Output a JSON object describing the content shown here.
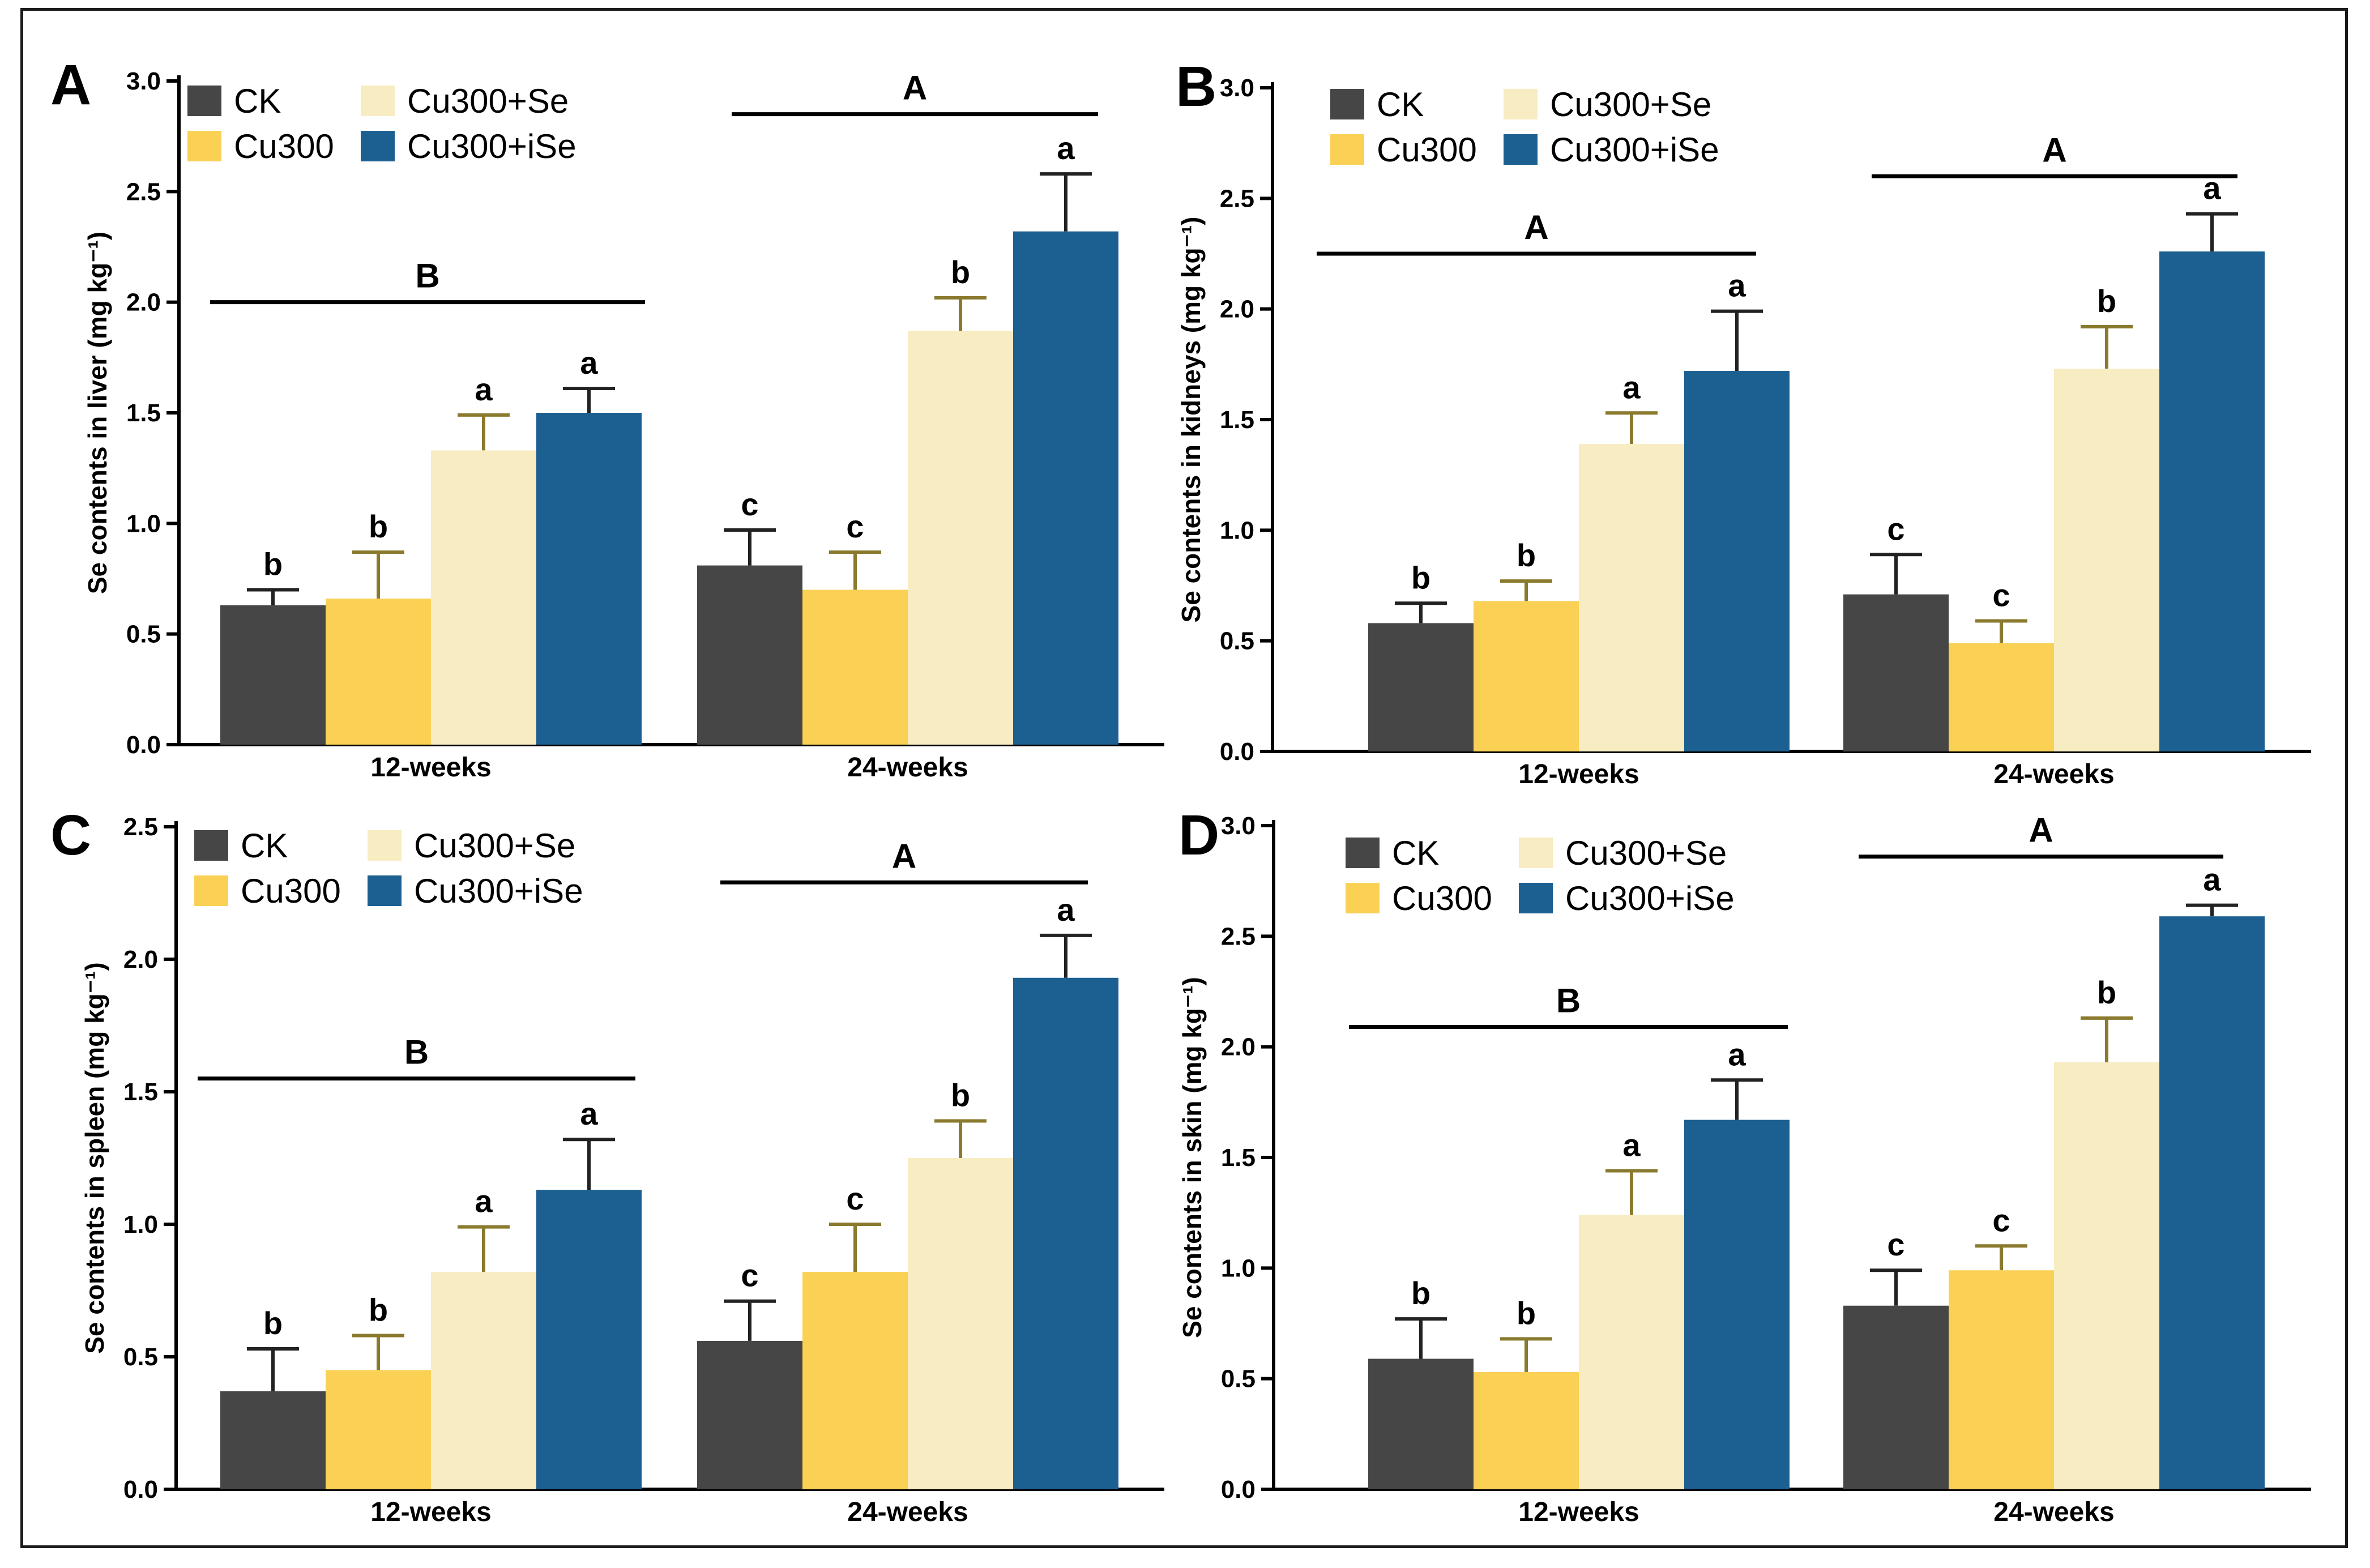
{
  "chart_data": [
    {
      "type": "bar",
      "panel_label": "A",
      "ylabel": "Se contents in liver (mg kg⁻¹)",
      "ylim": [
        0,
        3.0
      ],
      "yticks": [
        "0.0",
        "0.5",
        "1.0",
        "1.5",
        "2.0",
        "2.5",
        "3.0"
      ],
      "categories": [
        "12-weeks",
        "24-weeks"
      ],
      "legend": {
        "position": "top-left"
      },
      "series": [
        {
          "name": "CK",
          "values": [
            0.63,
            0.81
          ],
          "errors": [
            0.07,
            0.16
          ],
          "letters": [
            "b",
            "c"
          ]
        },
        {
          "name": "Cu300",
          "values": [
            0.66,
            0.7
          ],
          "errors": [
            0.21,
            0.17
          ],
          "letters": [
            "b",
            "c"
          ]
        },
        {
          "name": "Cu300+Se",
          "values": [
            1.33,
            1.87
          ],
          "errors": [
            0.16,
            0.15
          ],
          "letters": [
            "a",
            "b"
          ]
        },
        {
          "name": "Cu300+iSe",
          "values": [
            1.5,
            2.32
          ],
          "errors": [
            0.11,
            0.26
          ],
          "letters": [
            "a",
            "a"
          ]
        }
      ],
      "group_letters": [
        "B",
        "A"
      ],
      "group_line_y": [
        2.0,
        2.85
      ]
    },
    {
      "type": "bar",
      "panel_label": "B",
      "ylabel": "Se contents in kidneys (mg kg⁻¹)",
      "ylim": [
        0,
        3.0
      ],
      "yticks": [
        "0.0",
        "0.5",
        "1.0",
        "1.5",
        "2.0",
        "2.5",
        "3.0"
      ],
      "categories": [
        "12-weeks",
        "24-weeks"
      ],
      "legend": {
        "position": "top-left"
      },
      "series": [
        {
          "name": "CK",
          "values": [
            0.58,
            0.71
          ],
          "errors": [
            0.09,
            0.18
          ],
          "letters": [
            "b",
            "c"
          ]
        },
        {
          "name": "Cu300",
          "values": [
            0.68,
            0.49
          ],
          "errors": [
            0.09,
            0.1
          ],
          "letters": [
            "b",
            "c"
          ]
        },
        {
          "name": "Cu300+Se",
          "values": [
            1.39,
            1.73
          ],
          "errors": [
            0.14,
            0.19
          ],
          "letters": [
            "a",
            "b"
          ]
        },
        {
          "name": "Cu300+iSe",
          "values": [
            1.72,
            2.26
          ],
          "errors": [
            0.27,
            0.17
          ],
          "letters": [
            "a",
            "a"
          ]
        }
      ],
      "group_letters": [
        "A",
        "A"
      ],
      "group_line_y": [
        2.25,
        2.6
      ]
    },
    {
      "type": "bar",
      "panel_label": "C",
      "ylabel": "Se contents in spleen (mg kg⁻¹)",
      "ylim": [
        0,
        2.5
      ],
      "yticks": [
        "0.0",
        "0.5",
        "1.0",
        "1.5",
        "2.0",
        "2.5"
      ],
      "categories": [
        "12-weeks",
        "24-weeks"
      ],
      "legend": {
        "position": "top-left"
      },
      "series": [
        {
          "name": "CK",
          "values": [
            0.37,
            0.56
          ],
          "errors": [
            0.16,
            0.15
          ],
          "letters": [
            "b",
            "c"
          ]
        },
        {
          "name": "Cu300",
          "values": [
            0.45,
            0.82
          ],
          "errors": [
            0.13,
            0.18
          ],
          "letters": [
            "b",
            "c"
          ]
        },
        {
          "name": "Cu300+Se",
          "values": [
            0.82,
            1.25
          ],
          "errors": [
            0.17,
            0.14
          ],
          "letters": [
            "a",
            "b"
          ]
        },
        {
          "name": "Cu300+iSe",
          "values": [
            1.13,
            1.93
          ],
          "errors": [
            0.19,
            0.16
          ],
          "letters": [
            "a",
            "a"
          ]
        }
      ],
      "group_letters": [
        "B",
        "A"
      ],
      "group_line_y": [
        1.55,
        2.29
      ]
    },
    {
      "type": "bar",
      "panel_label": "D",
      "ylabel": "Se contents in skin (mg kg⁻¹)",
      "ylim": [
        0,
        3.0
      ],
      "yticks": [
        "0.0",
        "0.5",
        "1.0",
        "1.5",
        "2.0",
        "2.5",
        "3.0"
      ],
      "categories": [
        "12-weeks",
        "24-weeks"
      ],
      "legend": {
        "position": "top-left"
      },
      "series": [
        {
          "name": "CK",
          "values": [
            0.59,
            0.83
          ],
          "errors": [
            0.18,
            0.16
          ],
          "letters": [
            "b",
            "c"
          ]
        },
        {
          "name": "Cu300",
          "values": [
            0.53,
            0.99
          ],
          "errors": [
            0.15,
            0.11
          ],
          "letters": [
            "b",
            "c"
          ]
        },
        {
          "name": "Cu300+Se",
          "values": [
            1.24,
            1.93
          ],
          "errors": [
            0.2,
            0.2
          ],
          "letters": [
            "a",
            "b"
          ]
        },
        {
          "name": "Cu300+iSe",
          "values": [
            1.67,
            2.59
          ],
          "errors": [
            0.18,
            0.05
          ],
          "letters": [
            "a",
            "a"
          ]
        }
      ],
      "group_letters": [
        "B",
        "A"
      ],
      "group_line_y": [
        2.09,
        2.86
      ]
    }
  ],
  "colors": {
    "CK": "#464646",
    "Cu300": "#fad155",
    "Cu300+Se": "#f8ecc2",
    "Cu300+iSe": "#1c5f91",
    "error_bar": "#8a7a2e",
    "error_bar_dark": "#222222"
  }
}
